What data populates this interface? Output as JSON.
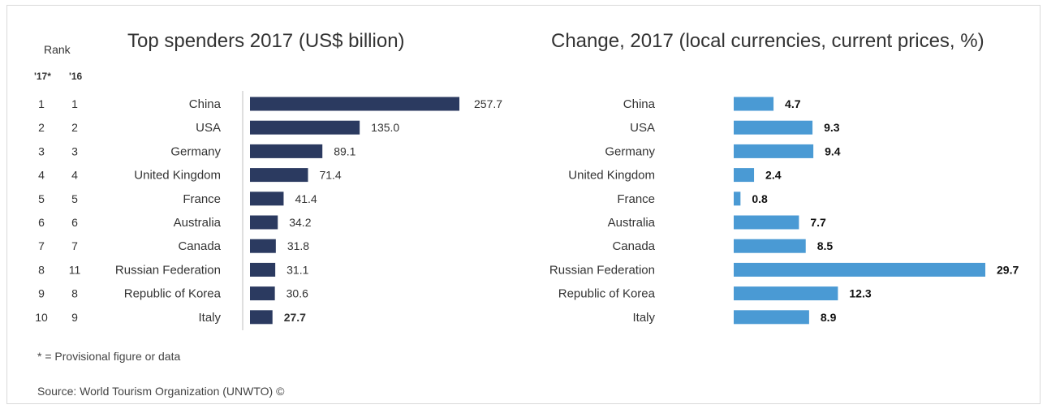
{
  "rank": {
    "heading": "Rank",
    "col_17": "'17*",
    "col_16": "'16"
  },
  "chart_data": [
    {
      "type": "bar",
      "title": "Top spenders 2017 (US$ billion)",
      "categories": [
        "China",
        "USA",
        "Germany",
        "United Kingdom",
        "France",
        "Australia",
        "Canada",
        "Russian Federation",
        "Republic of Korea",
        "Italy"
      ],
      "values": [
        257.7,
        135.0,
        89.1,
        71.4,
        41.4,
        34.2,
        31.8,
        31.1,
        30.6,
        27.7
      ],
      "value_labels": [
        "257.7",
        "135.0",
        "89.1",
        "71.4",
        "41.4",
        "34.2",
        "31.8",
        "31.1",
        "30.6",
        "27.7"
      ],
      "rank_2017": [
        "1",
        "2",
        "3",
        "4",
        "5",
        "6",
        "7",
        "8",
        "9",
        "10"
      ],
      "rank_2016": [
        "1",
        "2",
        "3",
        "4",
        "5",
        "6",
        "7",
        "11",
        "8",
        "9"
      ],
      "orientation": "horizontal",
      "color": "#2b3a60",
      "xlim": [
        0,
        257.7
      ]
    },
    {
      "type": "bar",
      "title": "Change, 2017 (local currencies, current prices, %)",
      "categories": [
        "China",
        "USA",
        "Germany",
        "United Kingdom",
        "France",
        "Australia",
        "Canada",
        "Russian Federation",
        "Republic of Korea",
        "Italy"
      ],
      "values": [
        4.7,
        9.3,
        9.4,
        2.4,
        0.8,
        7.7,
        8.5,
        29.7,
        12.3,
        8.9
      ],
      "value_labels": [
        "4.7",
        "9.3",
        "9.4",
        "2.4",
        "0.8",
        "7.7",
        "8.5",
        "29.7",
        "12.3",
        "8.9"
      ],
      "orientation": "horizontal",
      "color": "#4a9ad4",
      "xlim": [
        0,
        29.7
      ]
    }
  ],
  "footnote": "* = Provisional figure or data",
  "source": "Source: World Tourism Organization (UNWTO) ©"
}
